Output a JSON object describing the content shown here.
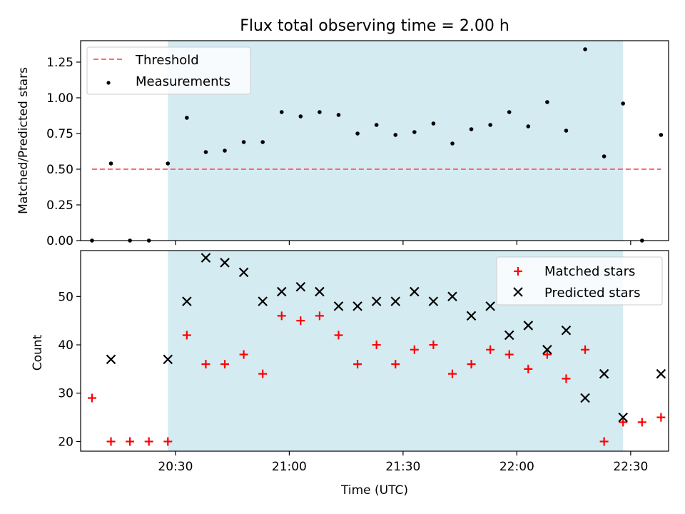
{
  "figure_title": "Flux total observing time = 2.00 h",
  "chart_data": [
    {
      "type": "scatter",
      "title": "Flux total observing time = 2.00 h",
      "xlabel": "",
      "ylabel": "Matched/Predicted stars",
      "xlim": [
        "20:05",
        "22:40"
      ],
      "ylim": [
        0,
        1.4
      ],
      "x_ticks": [
        "20:30",
        "21:00",
        "21:30",
        "22:00",
        "22:30"
      ],
      "x_ticklabels_shown": false,
      "y_ticks": [
        "0.00",
        "0.25",
        "0.50",
        "0.75",
        "1.00",
        "1.25"
      ],
      "shaded_span": [
        "20:28",
        "22:28"
      ],
      "shaded_color": "#add8e6",
      "grid": false,
      "legend_position": "upper left",
      "series": [
        {
          "name": "Threshold",
          "kind": "line",
          "style": "dashed",
          "color": "#ff6b6b",
          "x": [
            "20:08",
            "22:38"
          ],
          "y": [
            0.5,
            0.5
          ]
        },
        {
          "name": "Measurements",
          "kind": "scatter",
          "marker": "dot",
          "color": "#000000",
          "x": [
            "20:08",
            "20:13",
            "20:18",
            "20:23",
            "20:28",
            "20:33",
            "20:38",
            "20:43",
            "20:48",
            "20:53",
            "20:58",
            "21:03",
            "21:08",
            "21:13",
            "21:18",
            "21:23",
            "21:28",
            "21:33",
            "21:38",
            "21:43",
            "21:48",
            "21:53",
            "21:58",
            "22:03",
            "22:08",
            "22:13",
            "22:18",
            "22:23",
            "22:28",
            "22:33",
            "22:38"
          ],
          "y": [
            0.0,
            0.54,
            0.0,
            0.0,
            0.54,
            0.86,
            0.62,
            0.63,
            0.69,
            0.69,
            0.9,
            0.87,
            0.9,
            0.88,
            0.75,
            0.81,
            0.74,
            0.76,
            0.82,
            0.68,
            0.78,
            0.81,
            0.9,
            0.8,
            0.97,
            0.77,
            1.34,
            0.59,
            0.96,
            0.0,
            0.74
          ]
        }
      ]
    },
    {
      "type": "scatter",
      "title": "",
      "xlabel": "Time (UTC)",
      "ylabel": "Count",
      "xlim": [
        "20:05",
        "22:40"
      ],
      "ylim": [
        18,
        59.5
      ],
      "x_ticks": [
        "20:30",
        "21:00",
        "21:30",
        "22:00",
        "22:30"
      ],
      "x_ticklabels_shown": true,
      "y_ticks": [
        "20",
        "30",
        "40",
        "50"
      ],
      "shaded_span": [
        "20:28",
        "22:28"
      ],
      "shaded_color": "#add8e6",
      "grid": false,
      "legend_position": "upper right",
      "series": [
        {
          "name": "Matched stars",
          "kind": "scatter",
          "marker": "plus",
          "color": "#ff0000",
          "x": [
            "20:08",
            "20:13",
            "20:18",
            "20:23",
            "20:28",
            "20:33",
            "20:38",
            "20:43",
            "20:48",
            "20:53",
            "20:58",
            "21:03",
            "21:08",
            "21:13",
            "21:18",
            "21:23",
            "21:28",
            "21:33",
            "21:38",
            "21:43",
            "21:48",
            "21:53",
            "21:58",
            "22:03",
            "22:08",
            "22:13",
            "22:18",
            "22:23",
            "22:28",
            "22:33",
            "22:38"
          ],
          "y": [
            29,
            20,
            20,
            20,
            20,
            42,
            36,
            36,
            38,
            34,
            46,
            45,
            46,
            42,
            36,
            40,
            36,
            39,
            40,
            34,
            36,
            39,
            38,
            35,
            38,
            33,
            39,
            20,
            24,
            24,
            25
          ]
        },
        {
          "name": "Predicted stars",
          "kind": "scatter",
          "marker": "x",
          "color": "#000000",
          "x": [
            "20:13",
            "20:28",
            "20:33",
            "20:38",
            "20:43",
            "20:48",
            "20:53",
            "20:58",
            "21:03",
            "21:08",
            "21:13",
            "21:18",
            "21:23",
            "21:28",
            "21:33",
            "21:38",
            "21:43",
            "21:48",
            "21:53",
            "21:58",
            "22:03",
            "22:08",
            "22:13",
            "22:18",
            "22:23",
            "22:28",
            "22:38"
          ],
          "y": [
            37,
            37,
            49,
            58,
            57,
            55,
            49,
            51,
            52,
            51,
            48,
            48,
            49,
            49,
            51,
            49,
            50,
            46,
            48,
            42,
            44,
            39,
            43,
            29,
            34,
            25,
            34
          ]
        }
      ]
    }
  ]
}
